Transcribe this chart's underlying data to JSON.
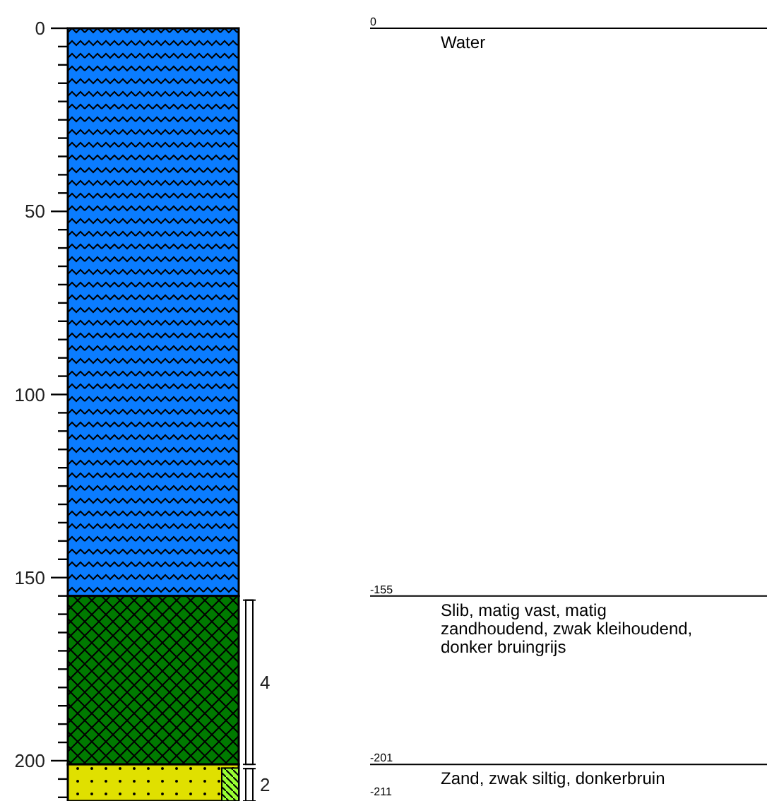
{
  "chart_data": {
    "type": "bar",
    "stacked": true,
    "categories": [
      null
    ],
    "series": [
      {
        "name": "Water",
        "color": "#0a7cff",
        "values": [
          155
        ]
      },
      {
        "name": "Slib, matig vast, matig zandhoudend, zwak kleihoudend, donker bruingrijs",
        "color": "#007a00",
        "values": [
          46
        ]
      },
      {
        "name": "Zand, zwak siltig, donkerbruin",
        "color": "#e0e000",
        "values": [
          10
        ]
      }
    ],
    "ylim": [
      211,
      0
    ],
    "yticks": [
      0,
      {
        "value": 5,
        "label": null
      },
      {
        "value": 10,
        "label": null
      },
      {
        "value": 15,
        "label": null
      },
      {
        "value": 20,
        "label": null
      },
      {
        "value": 25,
        "label": null
      },
      {
        "value": 30,
        "label": null
      },
      {
        "value": 35,
        "label": null
      },
      {
        "value": 40,
        "label": null
      },
      {
        "value": 45,
        "label": null
      },
      50,
      {
        "value": 55,
        "label": null
      },
      {
        "value": 60,
        "label": null
      },
      {
        "value": 65,
        "label": null
      },
      {
        "value": 70,
        "label": null
      },
      {
        "value": 75,
        "label": null
      },
      {
        "value": 80,
        "label": null
      },
      {
        "value": 85,
        "label": null
      },
      {
        "value": 90,
        "label": null
      },
      {
        "value": 95,
        "label": null
      },
      100,
      {
        "value": 105,
        "label": null
      },
      {
        "value": 110,
        "label": null
      },
      {
        "value": 115,
        "label": null
      },
      {
        "value": 120,
        "label": null
      },
      {
        "value": 125,
        "label": null
      },
      {
        "value": 130,
        "label": null
      },
      {
        "value": 135,
        "label": null
      },
      {
        "value": 140,
        "label": null
      },
      {
        "value": 145,
        "label": null
      },
      150,
      {
        "value": 155,
        "label": null
      },
      {
        "value": 160,
        "label": null
      },
      {
        "value": 165,
        "label": null
      },
      {
        "value": 170,
        "label": null
      },
      {
        "value": 175,
        "label": null
      },
      {
        "value": 180,
        "label": null
      },
      {
        "value": 185,
        "label": null
      },
      {
        "value": 190,
        "label": null
      },
      {
        "value": 195,
        "label": null
      },
      200,
      {
        "value": 205,
        "label": null
      },
      {
        "value": 210,
        "label": null
      }
    ],
    "annotations": [
      "0",
      "-155",
      "-201",
      "-211",
      "4",
      "2"
    ]
  }
}
